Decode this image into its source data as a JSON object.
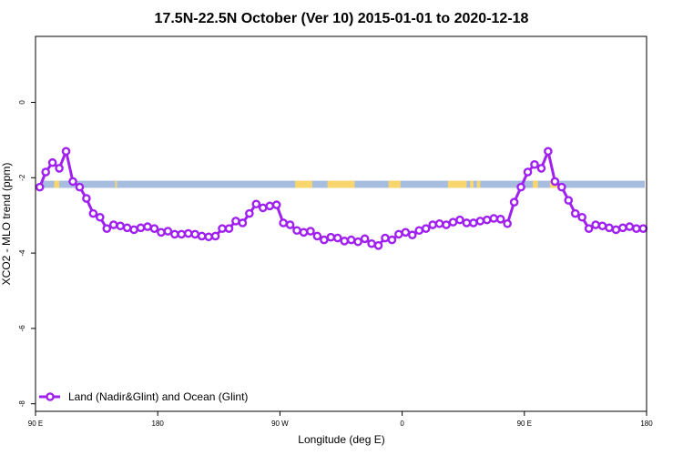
{
  "chart_data": {
    "type": "line",
    "title": "17.5N-22.5N October (Ver 10)   2015-01-01 to 2020-12-18",
    "xlabel": "Longitude (deg E)",
    "ylabel": "XCO2 - MLO trend (ppm)",
    "xlim": [
      90,
      450
    ],
    "ylim": [
      -8.2,
      1.75
    ],
    "x_ticks": [
      90,
      162,
      234,
      306,
      378,
      450
    ],
    "x_tick_labels": [
      "90 E",
      "180",
      "90 W",
      "0",
      "90 E",
      "180"
    ],
    "y_ticks": [
      0,
      -2,
      -4,
      -6,
      -8
    ],
    "y_tick_labels": [
      "0",
      "-2",
      "-4",
      "-6",
      "-8"
    ],
    "grid": false,
    "legend_position": "bottom-left",
    "colors": {
      "series": "#a020f0",
      "ocean": "#a7bde0",
      "land": "#f9d66d",
      "axis": "#000000"
    },
    "surface_band": {
      "y_range": [
        -2.27,
        -2.08
      ],
      "land_segments": [
        [
          101,
          104
        ],
        [
          137,
          138
        ],
        [
          243,
          253
        ],
        [
          262,
          278
        ],
        [
          298,
          305
        ],
        [
          333,
          344
        ],
        [
          346,
          348
        ],
        [
          350,
          352
        ],
        [
          383,
          386
        ],
        [
          393,
          398
        ]
      ]
    },
    "series": [
      {
        "name": "Land (Nadir&Glint) and Ocean (Glint)",
        "x": [
          92.5,
          96,
          100,
          104,
          108,
          112,
          116,
          120,
          124,
          128,
          132,
          136,
          140,
          144,
          148,
          152,
          156,
          160,
          164,
          168,
          172,
          176,
          180,
          184,
          188,
          192,
          196,
          200,
          204,
          208,
          212,
          216,
          220,
          224,
          228,
          232,
          236,
          240,
          244,
          248,
          252,
          256,
          260,
          264,
          268,
          272,
          276,
          280,
          284,
          288,
          292,
          296,
          300,
          304,
          308,
          312,
          316,
          320,
          324,
          328,
          332,
          336,
          340,
          344,
          348,
          352,
          356,
          360,
          364,
          368,
          372,
          376,
          380,
          384,
          388,
          392,
          396,
          400,
          404,
          408,
          412,
          416,
          420,
          424,
          428,
          432,
          436,
          440,
          444,
          448
        ],
        "y": [
          -2.25,
          -1.85,
          -1.6,
          -1.75,
          -1.3,
          -2.1,
          -2.25,
          -2.55,
          -2.95,
          -3.05,
          -3.35,
          -3.25,
          -3.28,
          -3.33,
          -3.38,
          -3.33,
          -3.3,
          -3.35,
          -3.45,
          -3.42,
          -3.5,
          -3.5,
          -3.48,
          -3.5,
          -3.55,
          -3.57,
          -3.55,
          -3.35,
          -3.35,
          -3.15,
          -3.2,
          -2.95,
          -2.7,
          -2.8,
          -2.75,
          -2.72,
          -3.2,
          -3.25,
          -3.4,
          -3.45,
          -3.42,
          -3.55,
          -3.65,
          -3.58,
          -3.6,
          -3.68,
          -3.65,
          -3.7,
          -3.62,
          -3.75,
          -3.8,
          -3.6,
          -3.65,
          -3.5,
          -3.45,
          -3.52,
          -3.4,
          -3.35,
          -3.25,
          -3.22,
          -3.25,
          -3.18,
          -3.12,
          -3.2,
          -3.2,
          -3.15,
          -3.12,
          -3.08,
          -3.1,
          -3.22,
          -2.65,
          -2.25,
          -1.85,
          -1.65,
          -1.75,
          -1.3,
          -2.1,
          -2.25,
          -2.6,
          -2.95,
          -3.05,
          -3.35,
          -3.25,
          -3.28,
          -3.33,
          -3.38,
          -3.33,
          -3.3,
          -3.35,
          -3.35
        ]
      }
    ]
  }
}
